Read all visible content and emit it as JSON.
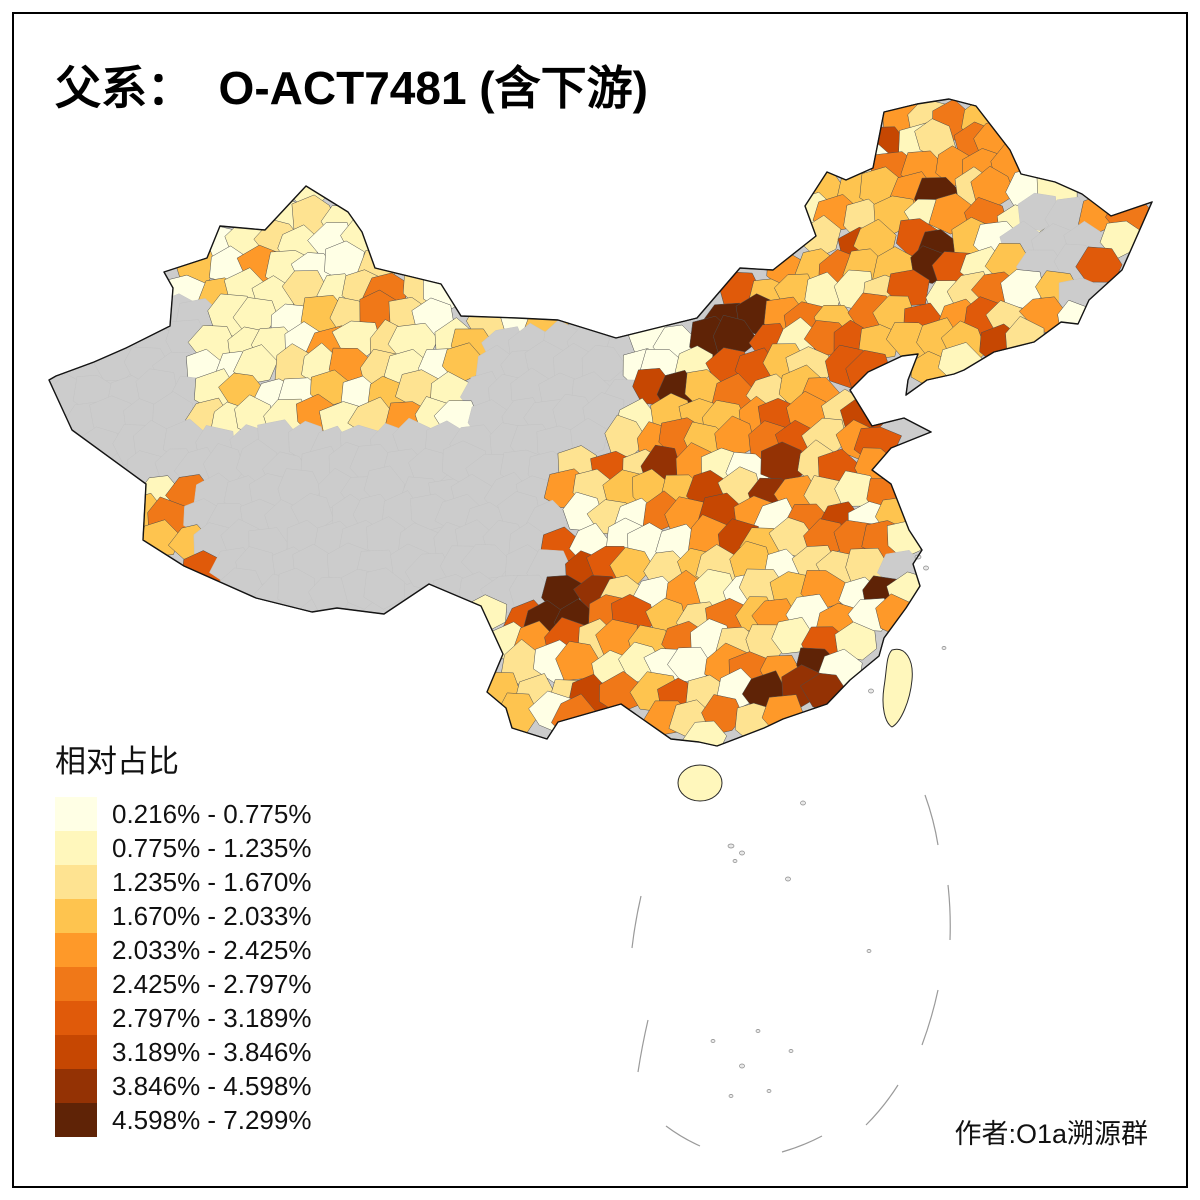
{
  "title": "父系：  O-ACT7481 (含下游)",
  "attribution": "作者:O1a溯源群",
  "legend": {
    "title": "相对占比"
  },
  "chart_data": {
    "type": "heatmap",
    "subtype": "choropleth-map",
    "region": "China, prefecture-level divisions",
    "title": "父系： O-ACT7481 (含下游)",
    "measure_label": "相对占比",
    "bins": [
      "0.216% - 0.775%",
      "0.775% - 1.235%",
      "1.235% - 1.670%",
      "1.670% - 2.033%",
      "2.033% - 2.425%",
      "2.425% - 2.797%",
      "2.797% - 3.189%",
      "3.189% - 3.846%",
      "3.846% - 4.598%",
      "4.598% - 7.299%"
    ],
    "palette": [
      "#FFFFE5",
      "#FFF7BC",
      "#FEE391",
      "#FEC44F",
      "#FE9929",
      "#F07818",
      "#E05A0A",
      "#C64702",
      "#943204",
      "#5F2306"
    ],
    "no_data_color": "#CCCCCC",
    "value_range": [
      0.216,
      7.299
    ],
    "legend_position": "bottom-left",
    "attribution": "作者:O1a溯源群"
  }
}
